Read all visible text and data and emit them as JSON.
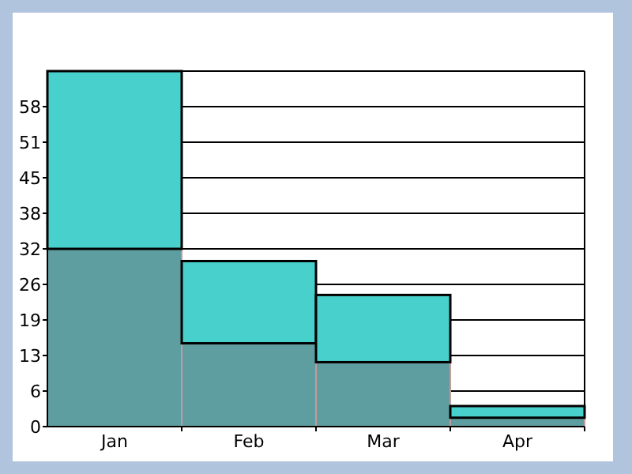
{
  "chart_data": {
    "type": "bar",
    "stacked": true,
    "categories": [
      "Jan",
      "Feb",
      "Mar",
      "Apr"
    ],
    "series": [
      {
        "color": "#5f9ea0",
        "values": [
          32,
          15,
          11.6,
          1.6
        ]
      },
      {
        "color": "#48d1cc",
        "values": [
          32,
          14.8,
          12.1,
          2.1
        ]
      }
    ],
    "ylim": [
      0,
      64
    ],
    "yticks": [
      0,
      {
        "value": 6.4,
        "label": "6"
      },
      {
        "value": 12.8,
        "label": "13"
      },
      {
        "value": 19.2,
        "label": "19"
      },
      {
        "value": 25.6,
        "label": "26"
      },
      {
        "value": 32,
        "label": "32"
      },
      {
        "value": 38.4,
        "label": "38"
      },
      {
        "value": 44.8,
        "label": "45"
      },
      {
        "value": 51.2,
        "label": "51"
      },
      {
        "value": 57.6,
        "label": "58"
      }
    ],
    "grid": true
  }
}
